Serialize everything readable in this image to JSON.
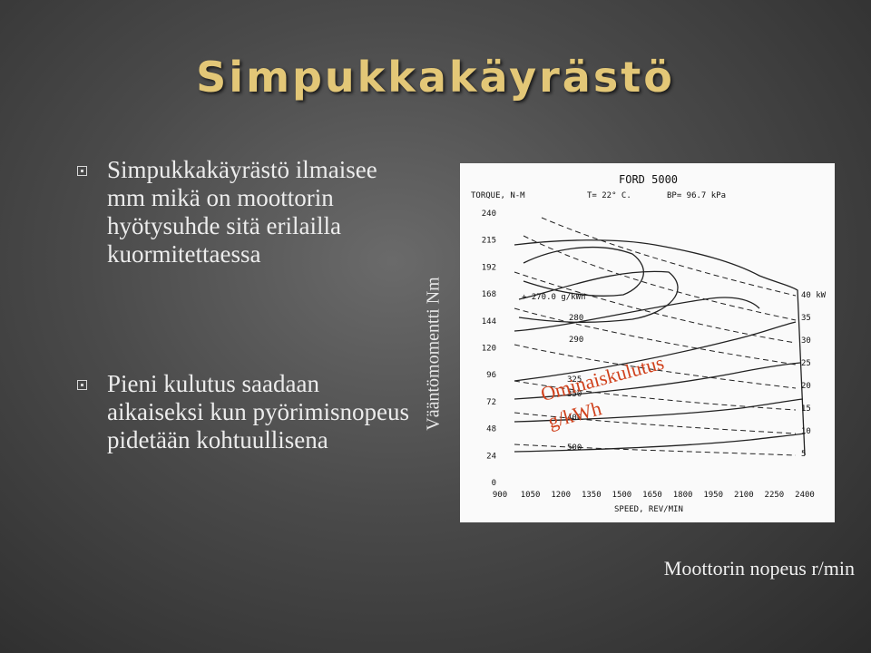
{
  "title": "Simpukkakäyrästö",
  "bullets": [
    "Simpukkakäyrästö ilmaisee mm mikä on moottorin hyötysuhde sitä erilailla kuormitettaessa",
    "Pieni kulutus saadaan aikaiseksi kun pyörimisnopeus pidetään kohtuullisena"
  ],
  "figure": {
    "heading": "FORD 5000",
    "torque_label": "TORQUE, N-M",
    "temperature": "T= 22° C.",
    "pressure": "BP= 96.7 kPa",
    "y_ticks": [
      "240",
      "215",
      "192",
      "168",
      "144",
      "120",
      "96",
      "72",
      "48",
      "24",
      "0"
    ],
    "x_ticks": [
      "900",
      "1050",
      "1200",
      "1350",
      "1500",
      "1650",
      "1800",
      "1950",
      "2100",
      "2250",
      "2400"
    ],
    "x_label": "SPEED, REV/MIN",
    "contour_labels": [
      "+ 270.0 g/kWh",
      "280",
      "290",
      "325",
      "350",
      "400",
      "500"
    ],
    "power_labels": [
      "40 kW",
      "35",
      "30",
      "25",
      "20",
      "15",
      "10",
      "5"
    ],
    "overlay_line1": "Ominaiskulutus",
    "overlay_line2": "g/kWh"
  },
  "y_axis_caption": "Vääntömomentti Nm",
  "x_axis_caption": "Moottorin nopeus r/min"
}
